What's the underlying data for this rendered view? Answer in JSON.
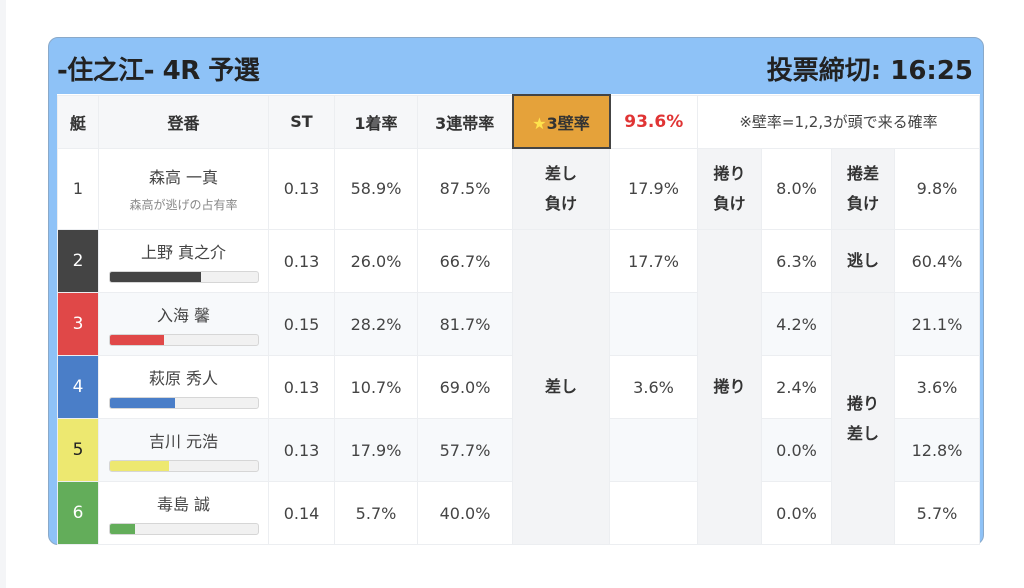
{
  "header": {
    "title": "-住之江- 4R 予選",
    "deadline": "投票締切: 16:25"
  },
  "columns": {
    "boat": "艇",
    "name": "登番",
    "st": "ST",
    "win": "1着率",
    "top3": "3連帯率",
    "wall_star": "★",
    "wall": "3壁率",
    "wall_value": "93.6%",
    "note": "※壁率=1,2,3が頭で来る確率"
  },
  "labels": {
    "sashi_make": "差し負け",
    "makuri_make": "捲り負け",
    "makurisashi_make": "捲差負け",
    "sashi": "差し",
    "makuri": "捲り",
    "nige": "逃し",
    "makurisashi": "捲り差し"
  },
  "row1": {
    "boat": "1",
    "name": "森高 一真",
    "sub": "森高が逃げの占有率",
    "st": "0.13",
    "win": "58.9%",
    "top3": "87.5%",
    "v1": "17.9%",
    "v2": "8.0%",
    "v3": "9.8%"
  },
  "rows": [
    {
      "boat": "2",
      "name": "上野 真之介",
      "st": "0.13",
      "win": "26.0%",
      "top3": "66.7%",
      "v1": "17.7%",
      "v2": "6.3%",
      "v3": "60.4%",
      "color": "#444444",
      "text": "#ffffff",
      "bar_pct": 62
    },
    {
      "boat": "3",
      "name": "入海 馨",
      "st": "0.15",
      "win": "28.2%",
      "top3": "81.7%",
      "v1": "",
      "v2": "4.2%",
      "v3": "21.1%",
      "color": "#e04848",
      "text": "#ffffff",
      "bar_pct": 37
    },
    {
      "boat": "4",
      "name": "萩原 秀人",
      "st": "0.13",
      "win": "10.7%",
      "top3": "69.0%",
      "v1": "3.6%",
      "v2": "2.4%",
      "v3": "3.6%",
      "color": "#4a7ec8",
      "text": "#ffffff",
      "bar_pct": 44
    },
    {
      "boat": "5",
      "name": "吉川 元浩",
      "st": "0.13",
      "win": "17.9%",
      "top3": "57.7%",
      "v1": "",
      "v2": "0.0%",
      "v3": "12.8%",
      "color": "#ede870",
      "text": "#222222",
      "bar_pct": 40
    },
    {
      "boat": "6",
      "name": "毒島 誠",
      "st": "0.14",
      "win": "5.7%",
      "top3": "40.0%",
      "v1": "",
      "v2": "0.0%",
      "v3": "5.7%",
      "color": "#63ad5a",
      "text": "#ffffff",
      "bar_pct": 17
    }
  ]
}
